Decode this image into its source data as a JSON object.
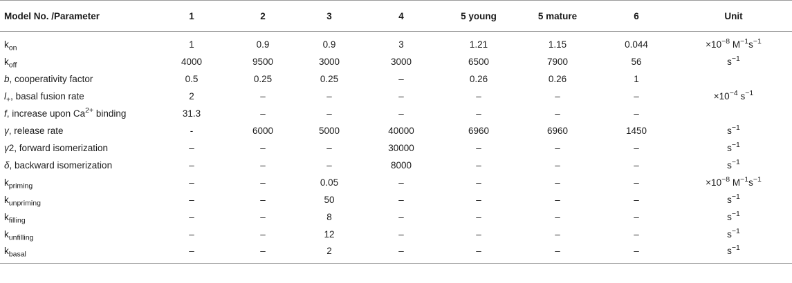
{
  "header": {
    "param": "Model No. /Parameter",
    "m1": "1",
    "m2": "2",
    "m3": "3",
    "m4": "4",
    "m5young": "5 young",
    "m5mature": "5 mature",
    "m6": "6",
    "unit": "Unit"
  },
  "rows": [
    {
      "p_main": "k",
      "p_sub": "on",
      "p_sym": "",
      "p_sup": "",
      "p_text": "",
      "v": [
        "1",
        "0.9",
        "0.9",
        "3",
        "1.21",
        "1.15",
        "0.044"
      ],
      "unit": {
        "base": "×10",
        "exp": "−8",
        "mid": " M",
        "exp2": "−1",
        "mid2": "s",
        "exp3": "−1"
      }
    },
    {
      "p_main": "k",
      "p_sub": "off",
      "p_sym": "",
      "p_sup": "",
      "p_text": "",
      "v": [
        "4000",
        "9500",
        "3000",
        "3000",
        "6500",
        "7900",
        "56"
      ],
      "unit": {
        "base": "s",
        "exp": "−1"
      }
    },
    {
      "p_sym": "b",
      "p_text": ", cooperativity factor",
      "v": [
        "0.5",
        "0.25",
        "0.25",
        "–",
        "0.26",
        "0.26",
        "1"
      ],
      "unit": {
        "base": "",
        "exp": ""
      }
    },
    {
      "p_sym": "l",
      "p_sub": "+",
      "p_text": ", basal fusion rate",
      "v": [
        "2",
        "–",
        "–",
        "–",
        "–",
        "–",
        "–"
      ],
      "unit": {
        "base": "×10",
        "exp": "−4",
        "mid": " s",
        "exp2": "−1"
      }
    },
    {
      "p_sym": "f",
      "p_text": ", increase upon Ca",
      "p_sup": "2+",
      "p_text2": " binding",
      "v": [
        "31.3",
        "–",
        "–",
        "–",
        "–",
        "–",
        "–"
      ],
      "unit": {
        "base": "",
        "exp": ""
      }
    },
    {
      "p_sym": "γ",
      "p_text": ", release rate",
      "v": [
        "-",
        "6000",
        "5000",
        "40000",
        "6960",
        "6960",
        "1450"
      ],
      "unit": {
        "base": "s",
        "exp": "−1"
      }
    },
    {
      "p_sym": "γ",
      "p_text": "2, forward isomerization",
      "v": [
        "–",
        "–",
        "–",
        "30000",
        "–",
        "–",
        "–"
      ],
      "unit": {
        "base": "s",
        "exp": "−1"
      }
    },
    {
      "p_sym": "δ",
      "p_text": ", backward isomerization",
      "v": [
        "–",
        "–",
        "–",
        "8000",
        "–",
        "–",
        "–"
      ],
      "unit": {
        "base": "s",
        "exp": "−1"
      }
    },
    {
      "p_main": "k",
      "p_sub": "priming",
      "v": [
        "–",
        "–",
        "0.05",
        "–",
        "–",
        "–",
        "–"
      ],
      "unit": {
        "base": "×10",
        "exp": "−8",
        "mid": " M",
        "exp2": "−1",
        "mid2": "s",
        "exp3": "−1"
      }
    },
    {
      "p_main": "k",
      "p_sub": "unpriming",
      "v": [
        "–",
        "–",
        "50",
        "–",
        "–",
        "–",
        "–"
      ],
      "unit": {
        "base": "s",
        "exp": "−1"
      }
    },
    {
      "p_main": "k",
      "p_sub": "filling",
      "v": [
        "–",
        "–",
        "8",
        "–",
        "–",
        "–",
        "–"
      ],
      "unit": {
        "base": "s",
        "exp": "−1"
      }
    },
    {
      "p_main": "k",
      "p_sub": "unfilling",
      "v": [
        "–",
        "–",
        "12",
        "–",
        "–",
        "–",
        "–"
      ],
      "unit": {
        "base": "s",
        "exp": "−1"
      }
    },
    {
      "p_main": "k",
      "p_sub": "basal",
      "v": [
        "–",
        "–",
        "2",
        "–",
        "–",
        "–",
        "–"
      ],
      "unit": {
        "base": "s",
        "exp": "−1"
      }
    }
  ]
}
